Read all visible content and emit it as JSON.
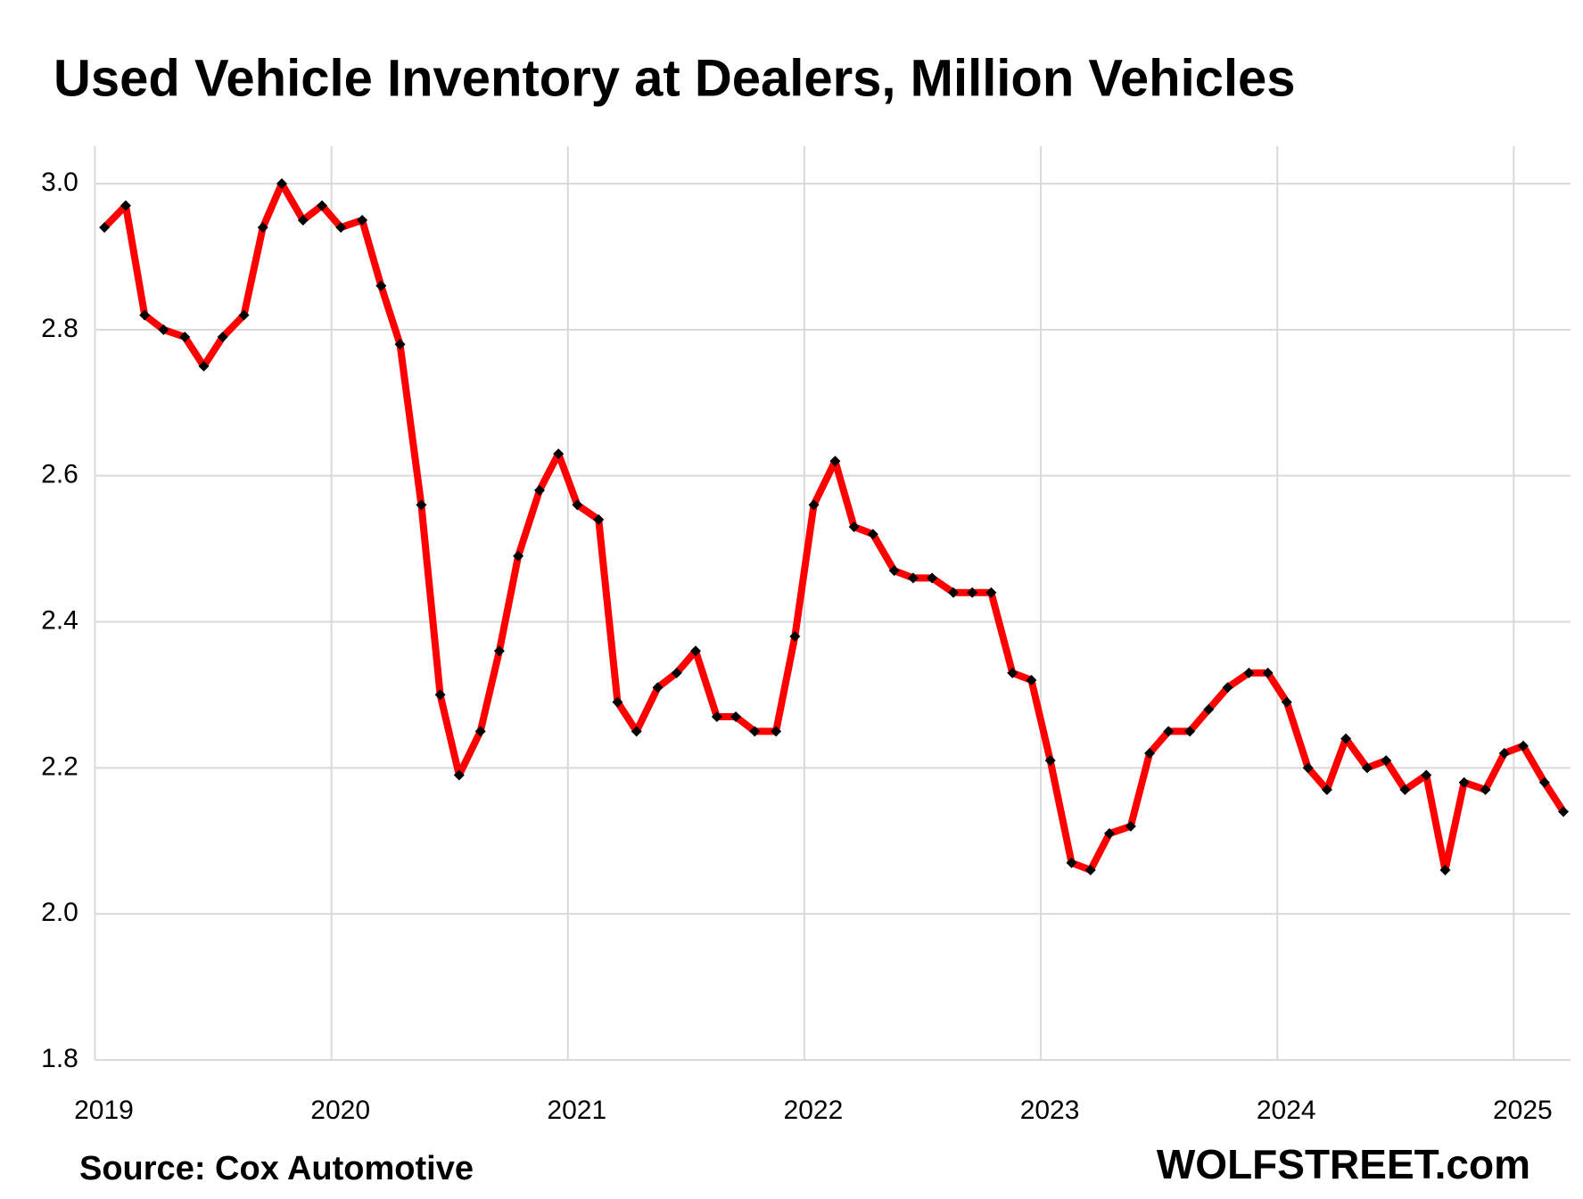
{
  "chart_data": {
    "type": "line",
    "title": "Used Vehicle Inventory at Dealers, Million Vehicles",
    "source": "Source: Cox Automotive",
    "brand": "WOLFSTREET.com",
    "color": "#ff0000",
    "marker_color": "#000000",
    "grid": true,
    "x": [
      2019.04,
      2019.13,
      2019.21,
      2019.29,
      2019.38,
      2019.46,
      2019.54,
      2019.63,
      2019.71,
      2019.79,
      2019.88,
      2019.96,
      2020.04,
      2020.13,
      2020.21,
      2020.29,
      2020.38,
      2020.46,
      2020.54,
      2020.63,
      2020.71,
      2020.79,
      2020.88,
      2020.96,
      2021.04,
      2021.13,
      2021.21,
      2021.29,
      2021.38,
      2021.46,
      2021.54,
      2021.63,
      2021.71,
      2021.79,
      2021.88,
      2021.96,
      2022.04,
      2022.13,
      2022.21,
      2022.29,
      2022.38,
      2022.46,
      2022.54,
      2022.63,
      2022.71,
      2022.79,
      2022.88,
      2022.96,
      2023.04,
      2023.13,
      2023.21,
      2023.29,
      2023.38,
      2023.46,
      2023.54,
      2023.63,
      2023.71,
      2023.79,
      2023.88,
      2023.96,
      2024.04,
      2024.13,
      2024.21,
      2024.29,
      2024.38,
      2024.46,
      2024.54,
      2024.63,
      2024.71,
      2024.79,
      2024.88,
      2024.96,
      2025.04,
      2025.13,
      2025.21
    ],
    "values": [
      2.94,
      2.97,
      2.82,
      2.8,
      2.79,
      2.75,
      2.79,
      2.82,
      2.94,
      3.0,
      2.95,
      2.97,
      2.94,
      2.95,
      2.86,
      2.78,
      2.56,
      2.3,
      2.19,
      2.25,
      2.36,
      2.49,
      2.58,
      2.63,
      2.56,
      2.54,
      2.29,
      2.25,
      2.31,
      2.33,
      2.36,
      2.27,
      2.27,
      2.25,
      2.25,
      2.38,
      2.56,
      2.62,
      2.53,
      2.52,
      2.47,
      2.46,
      2.46,
      2.44,
      2.44,
      2.44,
      2.33,
      2.32,
      2.21,
      2.07,
      2.06,
      2.11,
      2.12,
      2.22,
      2.25,
      2.25,
      2.28,
      2.31,
      2.33,
      2.33,
      2.29,
      2.2,
      2.17,
      2.24,
      2.2,
      2.21,
      2.17,
      2.19,
      2.06,
      2.18,
      2.17,
      2.22,
      2.23,
      2.18,
      2.14
    ],
    "xlim": [
      2019,
      2025.24
    ],
    "xticks": [
      2019,
      2020,
      2021,
      2022,
      2023,
      2024,
      2025
    ],
    "ylim": [
      1.8,
      3.0
    ],
    "yticks": [
      1.8,
      {
        "value": 2,
        "label": "2.0"
      },
      2.2,
      2.4,
      2.6,
      2.8,
      {
        "value": 3,
        "label": "3.0"
      }
    ]
  }
}
